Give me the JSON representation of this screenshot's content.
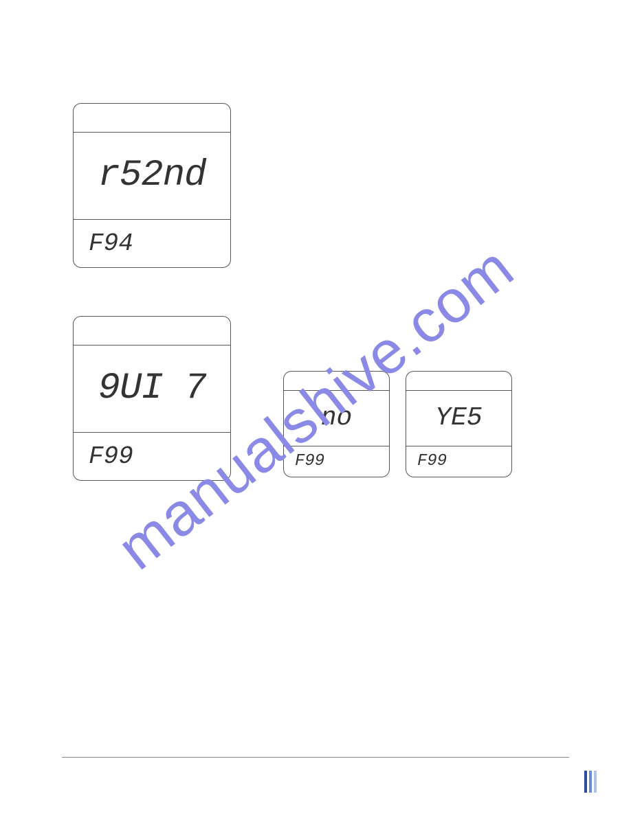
{
  "watermark_text": "manualshive.com",
  "watermark_color": "#8a8ae6",
  "screens": {
    "screen1": {
      "main": "r52nd",
      "bottom": "F94"
    },
    "screen2": {
      "main": "9UI 7",
      "bottom": "F99"
    },
    "screen3": {
      "main": "no",
      "bottom": "F99"
    },
    "screen4": {
      "main": "YE5",
      "bottom": "F99"
    }
  },
  "page_marker_colors": [
    "#2b4ea0",
    "#6c8ecf",
    "#b0c4e8"
  ],
  "border_color": "#555555",
  "background_color": "#ffffff",
  "lcd_text_color": "#333333",
  "footer_rule_color": "#888888"
}
